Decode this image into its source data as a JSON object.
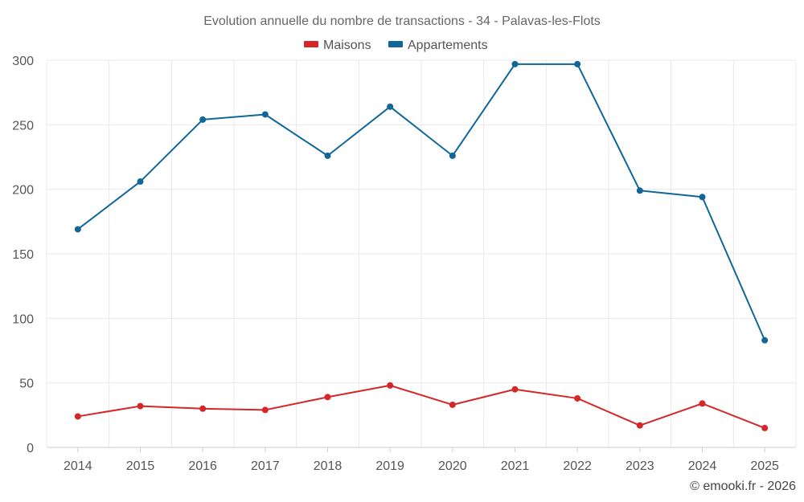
{
  "chart_data": {
    "type": "line",
    "title": "Evolution annuelle du nombre de transactions - 34 - Palavas-les-Flots",
    "categories": [
      "2014",
      "2015",
      "2016",
      "2017",
      "2018",
      "2019",
      "2020",
      "2021",
      "2022",
      "2023",
      "2024",
      "2025"
    ],
    "series": [
      {
        "name": "Maisons",
        "color": "#d62728",
        "values": [
          24,
          32,
          30,
          29,
          39,
          48,
          33,
          45,
          38,
          17,
          34,
          15
        ]
      },
      {
        "name": "Appartements",
        "color": "#11669a",
        "values": [
          169,
          206,
          254,
          258,
          226,
          264,
          226,
          297,
          297,
          199,
          194,
          83
        ]
      }
    ],
    "ylim": [
      0,
      300
    ],
    "yticks": [
      "0",
      "50",
      "100",
      "150",
      "200",
      "250",
      "300"
    ],
    "grid": true,
    "legend": "top-center",
    "credit": "© emooki.fr - 2026"
  }
}
